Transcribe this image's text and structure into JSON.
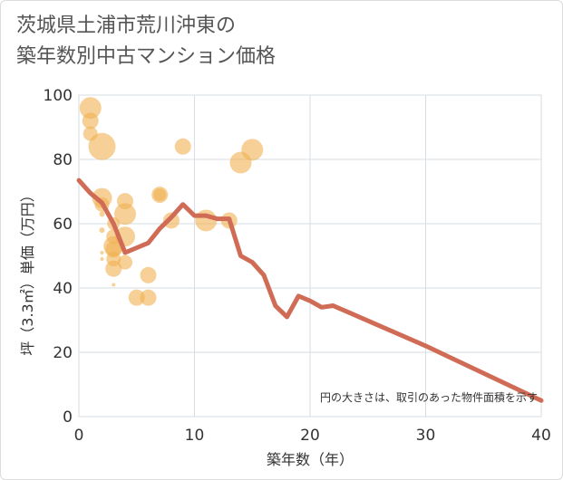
{
  "title_line1": "茨城県土浦市荒川沖東の",
  "title_line2": "築年数別中古マンション価格",
  "chart_data": {
    "type": "scatter",
    "title": "茨城県土浦市荒川沖東の 築年数別中古マンション価格",
    "xlabel": "築年数（年）",
    "ylabel": "坪（3.3㎡）単価（万円）",
    "xlim": [
      0,
      40
    ],
    "ylim": [
      0,
      100
    ],
    "xticks": [
      0,
      10,
      20,
      30,
      40
    ],
    "yticks": [
      0,
      20,
      40,
      60,
      80,
      100
    ],
    "grid": true,
    "note": "円の大きさは、取引のあった物件面積を示す",
    "colors": {
      "bubble": "#f0b050",
      "line": "#d06b55"
    },
    "bubbles": [
      {
        "x": 1,
        "y": 96,
        "s": 12
      },
      {
        "x": 1,
        "y": 92,
        "s": 9
      },
      {
        "x": 1,
        "y": 88,
        "s": 8
      },
      {
        "x": 2,
        "y": 84,
        "s": 15
      },
      {
        "x": 2,
        "y": 68,
        "s": 11
      },
      {
        "x": 2,
        "y": 66,
        "s": 8
      },
      {
        "x": 2,
        "y": 63,
        "s": 3
      },
      {
        "x": 2,
        "y": 58,
        "s": 3
      },
      {
        "x": 2,
        "y": 51,
        "s": 2
      },
      {
        "x": 2,
        "y": 49,
        "s": 2
      },
      {
        "x": 3,
        "y": 60,
        "s": 7
      },
      {
        "x": 3,
        "y": 56,
        "s": 8
      },
      {
        "x": 3,
        "y": 53,
        "s": 11
      },
      {
        "x": 3,
        "y": 52,
        "s": 9
      },
      {
        "x": 3,
        "y": 49,
        "s": 8
      },
      {
        "x": 3,
        "y": 46,
        "s": 9
      },
      {
        "x": 3,
        "y": 41,
        "s": 2
      },
      {
        "x": 4,
        "y": 67,
        "s": 9
      },
      {
        "x": 4,
        "y": 63,
        "s": 12
      },
      {
        "x": 4,
        "y": 56,
        "s": 11
      },
      {
        "x": 4,
        "y": 48,
        "s": 8
      },
      {
        "x": 5,
        "y": 37,
        "s": 9
      },
      {
        "x": 6,
        "y": 44,
        "s": 9
      },
      {
        "x": 6,
        "y": 37,
        "s": 9
      },
      {
        "x": 7,
        "y": 69,
        "s": 9
      },
      {
        "x": 7,
        "y": 69,
        "s": 7
      },
      {
        "x": 8,
        "y": 61,
        "s": 9
      },
      {
        "x": 9,
        "y": 84,
        "s": 9
      },
      {
        "x": 11,
        "y": 61,
        "s": 12
      },
      {
        "x": 13,
        "y": 61,
        "s": 9
      },
      {
        "x": 14,
        "y": 79,
        "s": 12
      },
      {
        "x": 15,
        "y": 83,
        "s": 12
      }
    ],
    "line": {
      "x": [
        0,
        1,
        2,
        3,
        4,
        5,
        6,
        7,
        8,
        9,
        10,
        11,
        12,
        13,
        14,
        15,
        16,
        17,
        18,
        19,
        20,
        21,
        22,
        30,
        40
      ],
      "y": [
        73.5,
        69.5,
        66.5,
        60,
        51,
        52.5,
        54,
        58.5,
        62,
        66,
        62.5,
        62.5,
        61.5,
        61.5,
        50,
        48,
        44,
        34.5,
        31,
        37.5,
        36,
        34,
        34.5,
        22,
        5
      ]
    }
  }
}
